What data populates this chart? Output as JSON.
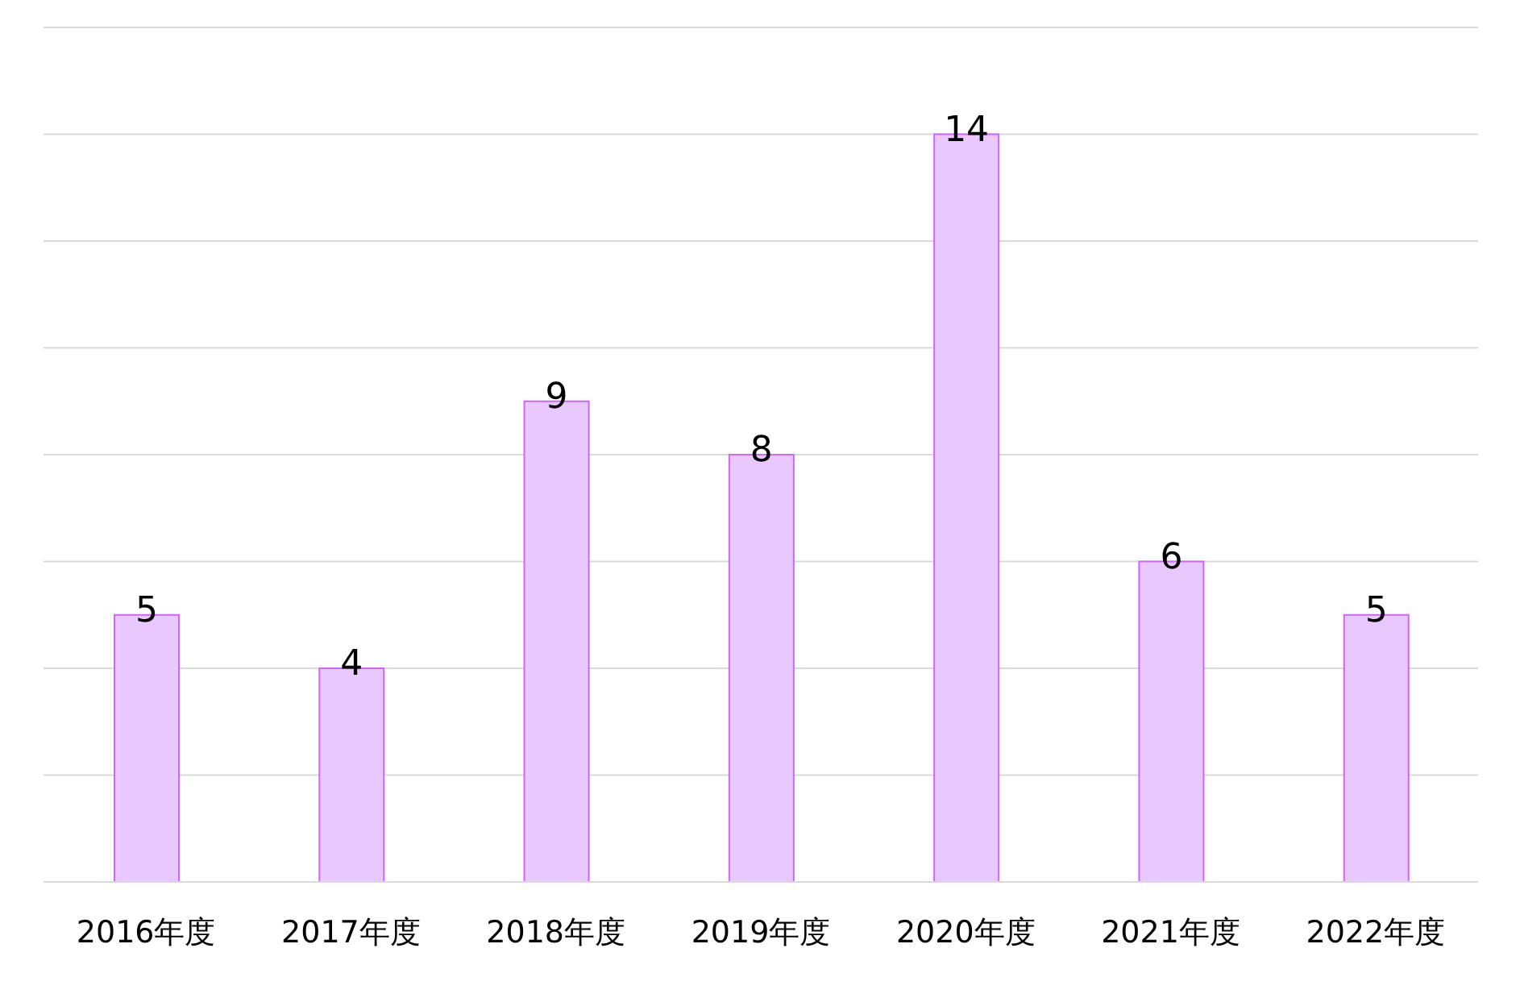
{
  "chart_data": {
    "type": "bar",
    "categories": [
      "2016年度",
      "2017年度",
      "2018年度",
      "2019年度",
      "2020年度",
      "2021年度",
      "2022年度"
    ],
    "values": [
      5,
      4,
      9,
      8,
      14,
      6,
      5
    ],
    "color": "#e8c8ff",
    "ylim": [
      0,
      16
    ],
    "yticks": [
      {
        "value": 0,
        "label": null
      },
      {
        "value": 2,
        "label": null
      },
      {
        "value": 4,
        "label": null
      },
      {
        "value": 6,
        "label": null
      },
      {
        "value": 8,
        "label": null
      },
      {
        "value": 10,
        "label": null
      },
      {
        "value": 12,
        "label": null
      },
      {
        "value": 14,
        "label": null
      },
      {
        "value": 16,
        "label": null
      }
    ],
    "grid": "y",
    "tick_labels": "x",
    "data_labels": true
  }
}
